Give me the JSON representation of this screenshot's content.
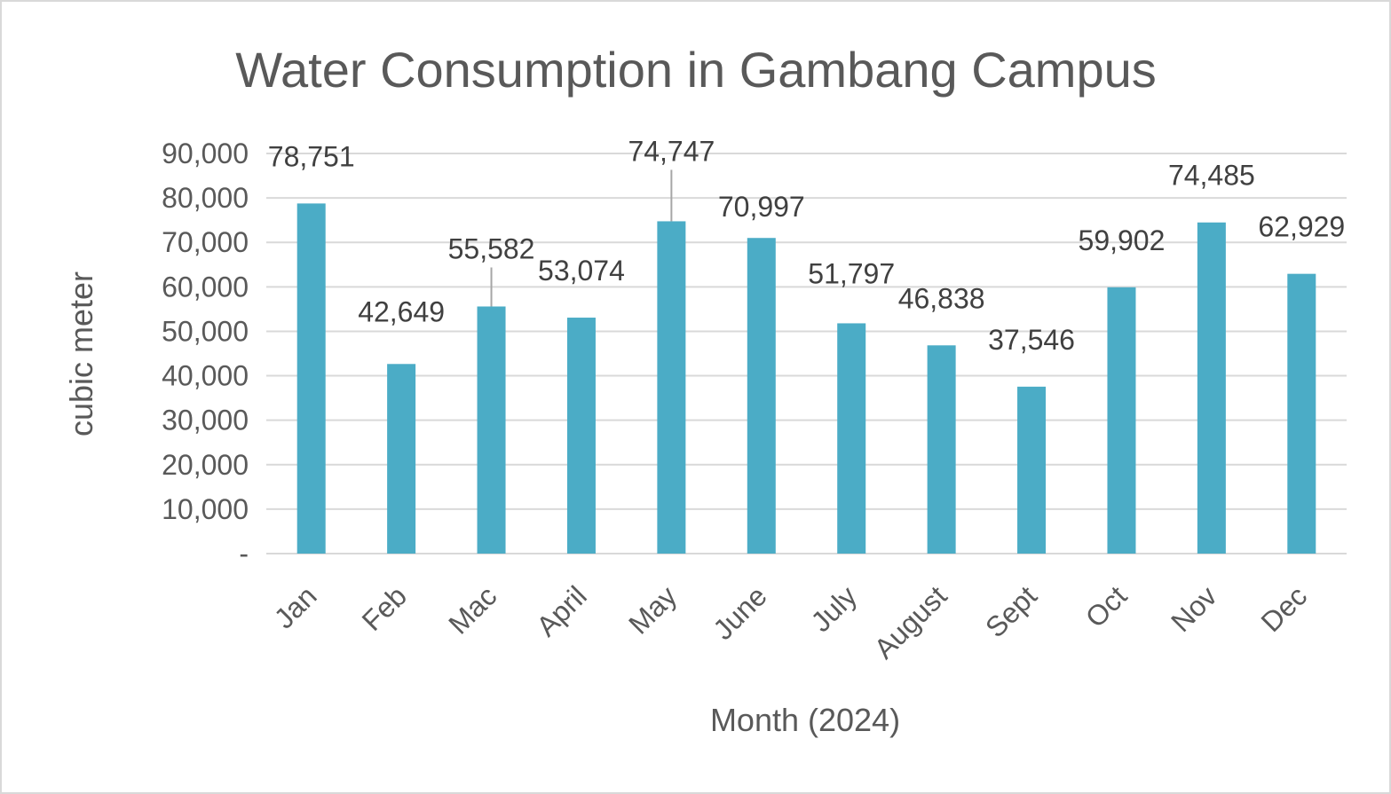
{
  "chart_data": {
    "type": "bar",
    "title": "Water Consumption in Gambang Campus",
    "xlabel": "Month (2024)",
    "ylabel": "cubic meter",
    "categories": [
      "Jan",
      "Feb",
      "Mac",
      "April",
      "May",
      "June",
      "July",
      "August",
      "Sept",
      "Oct",
      "Nov",
      "Dec"
    ],
    "values": [
      78751,
      42649,
      55582,
      53074,
      74747,
      70997,
      51797,
      46838,
      37546,
      59902,
      74485,
      62929
    ],
    "data_labels": [
      "78,751",
      "42,649",
      "55,582",
      "53,074",
      "74,747",
      "70,997",
      "51,797",
      "46,838",
      "37,546",
      "59,902",
      "74,485",
      "62,929"
    ],
    "ylim": [
      0,
      90000
    ],
    "yticks": [
      0,
      10000,
      20000,
      30000,
      40000,
      50000,
      60000,
      70000,
      80000,
      90000
    ],
    "ytick_labels": [
      "-",
      "10,000",
      "20,000",
      "30,000",
      "40,000",
      "50,000",
      "60,000",
      "70,000",
      "80,000",
      "90,000"
    ],
    "grid": true,
    "legend": "none",
    "bar_color": "#4bacc6",
    "grid_color": "#d9d9d9"
  }
}
